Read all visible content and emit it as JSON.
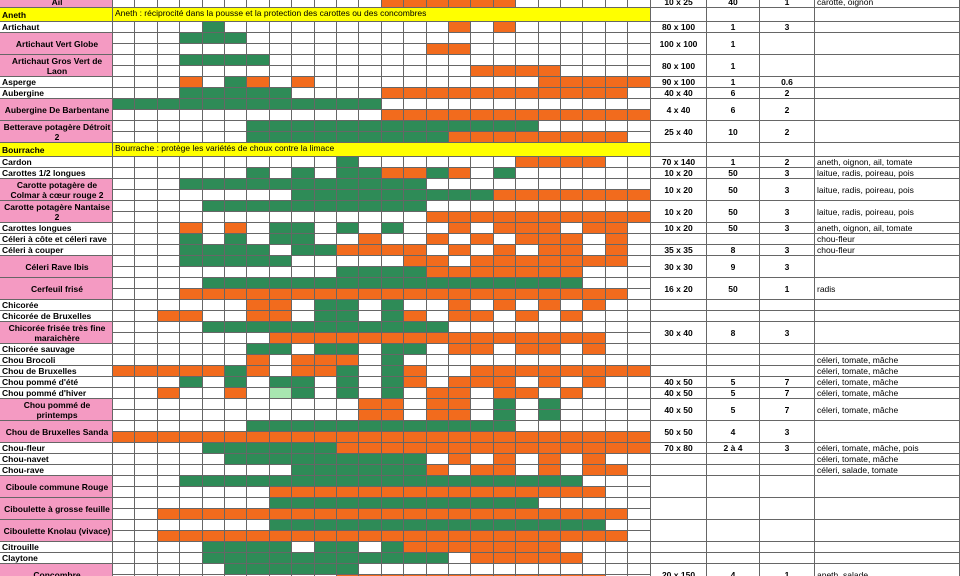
{
  "table": {
    "rows": [
      {
        "name": "Ail",
        "spacing": "10 x 25",
        "plants": "40",
        "rows": "1",
        "companions": "carotte, oignon"
      },
      {
        "name": "Aneth",
        "note": "Aneth : réciprocité dans la pousse et la protection des carottes ou des concombres"
      },
      {
        "name": "Artichaut",
        "spacing": "80 x 100",
        "plants": "1",
        "rows": "3"
      },
      {
        "name": "Artichaut Vert Globe",
        "spacing": "100 x 100",
        "plants": "1"
      },
      {
        "name": "Artichaut Gros Vert de Laon",
        "spacing": "80 x 100",
        "plants": "1"
      },
      {
        "name": "Asperge",
        "spacing": "90 x 100",
        "plants": "1",
        "rows": "0.6"
      },
      {
        "name": "Aubergine",
        "spacing": "40 x 40",
        "plants": "6",
        "rows": "2"
      },
      {
        "name": "Aubergine De Barbentane",
        "spacing": "4 x 40",
        "plants": "6",
        "rows": "2"
      },
      {
        "name": "Betterave potagère Détroit 2",
        "spacing": "25 x 40",
        "plants": "10",
        "rows": "2"
      },
      {
        "name": "Bourrache",
        "note": "Bourrache : protège les variétés de choux contre la limace"
      },
      {
        "name": "Cardon",
        "spacing": "70 x 140",
        "plants": "1",
        "rows": "2",
        "companions": "aneth, oignon, ail, tomate"
      },
      {
        "name": "Carottes 1/2 longues",
        "spacing": "10 x 20",
        "plants": "50",
        "rows": "3",
        "companions": "laitue, radis, poireau, pois"
      },
      {
        "name": "Carotte potagère de Colmar à cœur rouge 2",
        "spacing": "10 x 20",
        "plants": "50",
        "rows": "3",
        "companions": "laitue, radis, poireau, pois"
      },
      {
        "name": "Carotte potagère Nantaise 2",
        "spacing": "10 x 20",
        "plants": "50",
        "rows": "3",
        "companions": "laitue, radis, poireau, pois"
      },
      {
        "name": "Carottes longues",
        "spacing": "10 x 20",
        "plants": "50",
        "rows": "3",
        "companions": "aneth, oignon, ail, tomate"
      },
      {
        "name": "Céleri à côte et céleri rave",
        "companions": "chou-fleur"
      },
      {
        "name": "Céleri à couper",
        "spacing": "35 x 35",
        "plants": "8",
        "rows": "3",
        "companions": "chou-fleur"
      },
      {
        "name": "Céleri Rave Ibis",
        "spacing": "30 x 30",
        "plants": "9",
        "rows": "3"
      },
      {
        "name": "Cerfeuil frisé",
        "spacing": "16 x 20",
        "plants": "50",
        "rows": "1",
        "companions": "radis"
      },
      {
        "name": "Chicorée"
      },
      {
        "name": "Chicorée de Bruxelles"
      },
      {
        "name": "Chicorée frisée très fine maraichère",
        "spacing": "30 x 40",
        "plants": "8",
        "rows": "3"
      },
      {
        "name": "Chicorée sauvage"
      },
      {
        "name": "Chou Brocoli",
        "companions": "céleri, tomate, mâche"
      },
      {
        "name": "Chou de Bruxelles",
        "companions": "céleri, tomate, mâche"
      },
      {
        "name": "Chou pommé d'été",
        "spacing": "40 x 50",
        "plants": "5",
        "rows": "7",
        "companions": "céleri, tomate, mâche"
      },
      {
        "name": "Chou pommé d'hiver",
        "spacing": "40 x 50",
        "plants": "5",
        "rows": "7",
        "companions": "céleri, tomate, mâche"
      },
      {
        "name": "Chou pommé de printemps",
        "spacing": "40 x 50",
        "plants": "5",
        "rows": "7",
        "companions": "céleri, tomate, mâche"
      },
      {
        "name": "Chou de Bruxelles Sanda",
        "spacing": "50 x 50",
        "plants": "4",
        "rows": "3"
      },
      {
        "name": "Chou-fleur",
        "spacing": "70 x 80",
        "plants": "2 à 4",
        "rows": "3",
        "companions": "céleri, tomate, mâche, pois"
      },
      {
        "name": "Chou-navet",
        "companions": "céleri, tomate, mâche"
      },
      {
        "name": "Chou-rave",
        "companions": "céleri, salade, tomate"
      },
      {
        "name": "Ciboule commune Rouge"
      },
      {
        "name": "Ciboulette à grosse feuille"
      },
      {
        "name": "Ciboulette Knolau (vivace)"
      },
      {
        "name": "Citrouille"
      },
      {
        "name": "Claytone"
      },
      {
        "name": "Concombre",
        "spacing": "20 x 150",
        "plants": "4",
        "rows": "1",
        "companions": "aneth, salade"
      }
    ]
  }
}
